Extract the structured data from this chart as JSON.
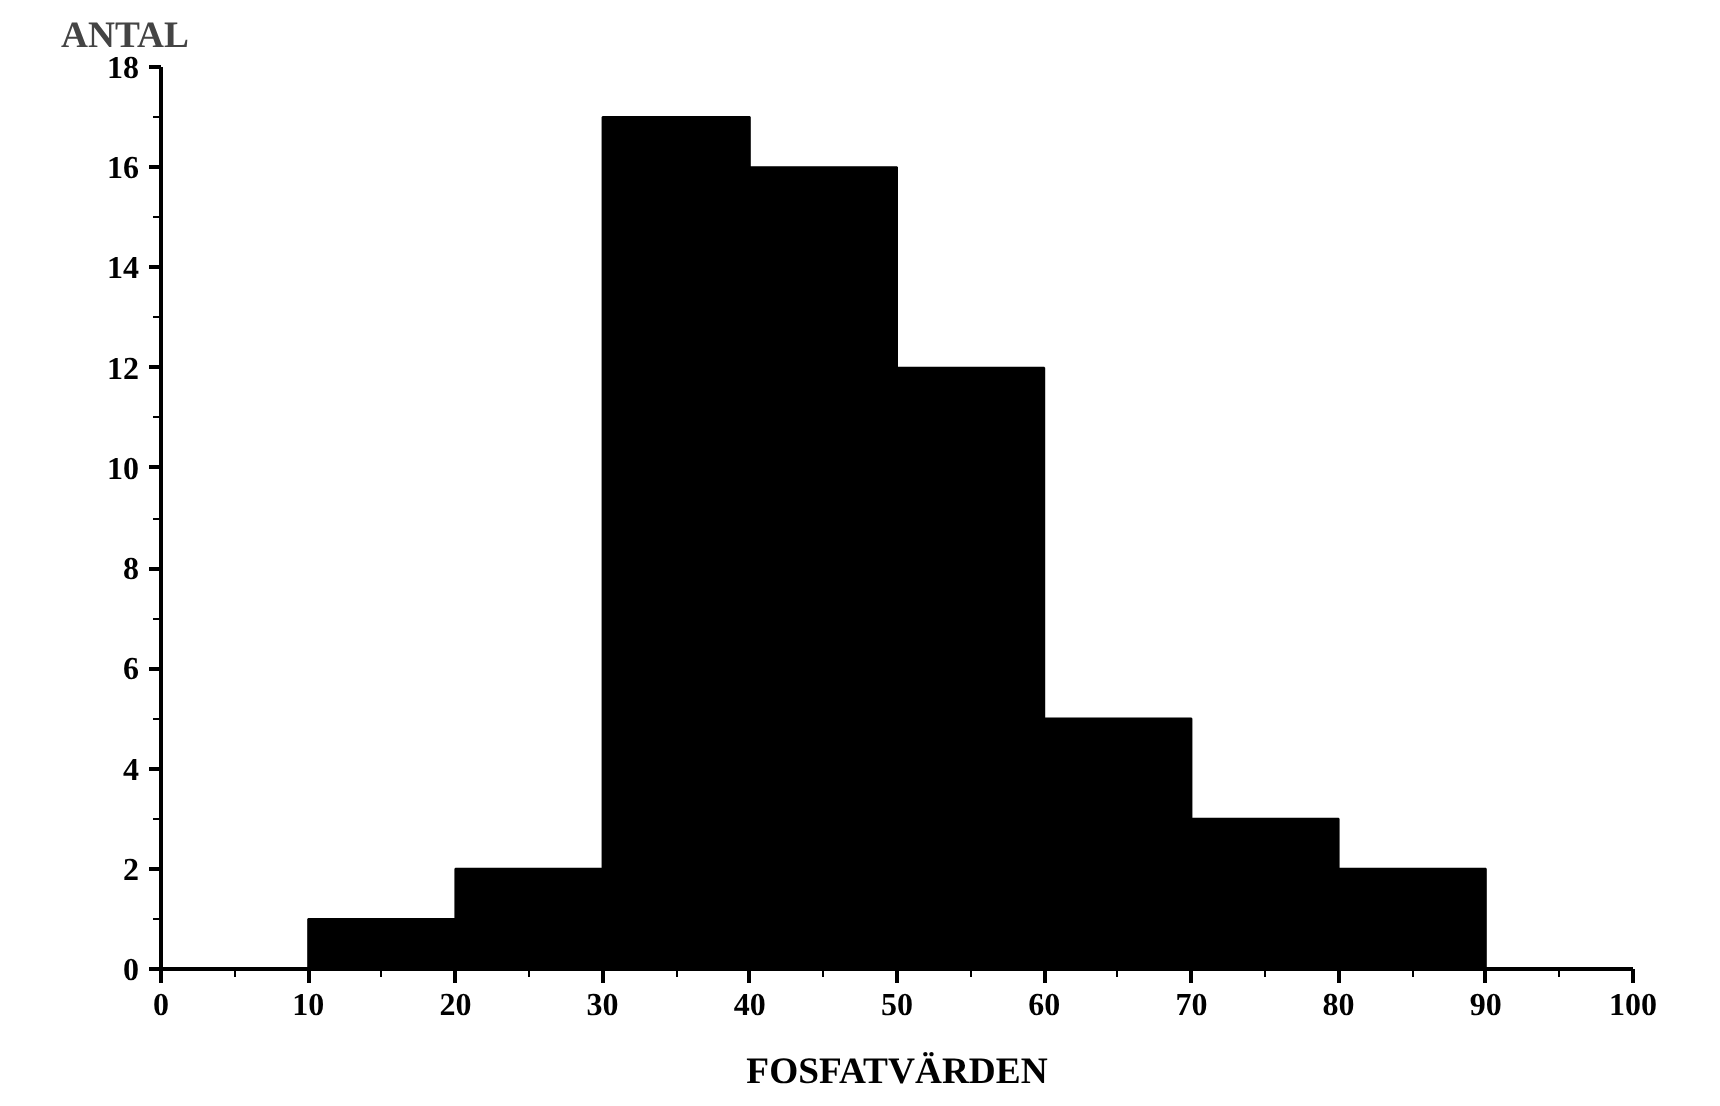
{
  "chart_data": {
    "type": "histogram",
    "ylabel": "ANTAL",
    "xlabel": "FOSFATVÄRDEN",
    "bins": [
      10,
      20,
      30,
      40,
      50,
      60,
      70,
      80,
      90
    ],
    "values": [
      1,
      2,
      17,
      16,
      12,
      5,
      3,
      2
    ],
    "color": "#000000",
    "xlim": [
      0,
      100
    ],
    "xticks": [
      0,
      10,
      20,
      30,
      40,
      50,
      60,
      70,
      80,
      90,
      100
    ],
    "ylim": [
      0,
      18
    ],
    "yticks": [
      0,
      2,
      4,
      6,
      8,
      10,
      12,
      14,
      16,
      18
    ],
    "grid": false
  }
}
